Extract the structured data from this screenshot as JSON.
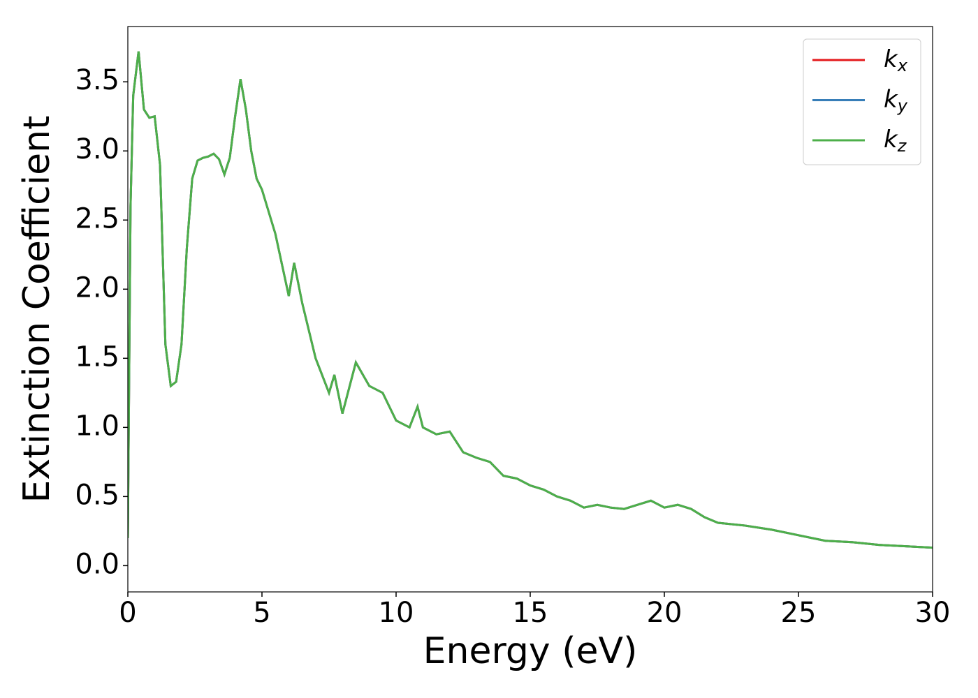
{
  "chart_data": {
    "type": "line",
    "xlabel": "Energy (eV)",
    "ylabel": "Extinction Coefficient",
    "x": [
      0,
      0.1,
      0.2,
      0.4,
      0.6,
      0.8,
      1.0,
      1.2,
      1.4,
      1.6,
      1.8,
      2.0,
      2.2,
      2.4,
      2.6,
      2.8,
      3.0,
      3.2,
      3.4,
      3.6,
      3.8,
      4.0,
      4.2,
      4.4,
      4.6,
      4.8,
      5.0,
      5.5,
      6.0,
      6.2,
      6.5,
      7.0,
      7.5,
      7.7,
      8.0,
      8.5,
      9.0,
      9.5,
      10.0,
      10.5,
      10.8,
      11.0,
      11.5,
      12.0,
      12.5,
      13.0,
      13.5,
      14.0,
      14.5,
      15.0,
      15.5,
      16.0,
      16.5,
      17.0,
      17.5,
      18.0,
      18.5,
      19.0,
      19.5,
      20.0,
      20.5,
      21.0,
      21.5,
      22.0,
      23,
      24,
      25,
      26,
      27,
      28,
      29,
      30
    ],
    "series": [
      {
        "name": "kx",
        "color": "#e41a1c",
        "values": [
          0.2,
          2.6,
          3.4,
          3.72,
          3.3,
          3.24,
          3.25,
          2.9,
          1.6,
          1.3,
          1.33,
          1.6,
          2.3,
          2.8,
          2.93,
          2.95,
          2.96,
          2.98,
          2.94,
          2.83,
          2.95,
          3.25,
          3.52,
          3.3,
          3.0,
          2.8,
          2.72,
          2.4,
          1.95,
          2.19,
          1.9,
          1.5,
          1.25,
          1.38,
          1.1,
          1.47,
          1.3,
          1.25,
          1.05,
          1.0,
          1.15,
          1.0,
          0.95,
          0.97,
          0.82,
          0.78,
          0.75,
          0.65,
          0.63,
          0.58,
          0.55,
          0.5,
          0.47,
          0.42,
          0.44,
          0.42,
          0.41,
          0.44,
          0.47,
          0.42,
          0.44,
          0.41,
          0.35,
          0.31,
          0.29,
          0.26,
          0.22,
          0.18,
          0.17,
          0.15,
          0.14,
          0.13
        ]
      },
      {
        "name": "ky",
        "color": "#377eb8",
        "values": [
          0.2,
          2.6,
          3.4,
          3.72,
          3.3,
          3.24,
          3.25,
          2.9,
          1.6,
          1.3,
          1.33,
          1.6,
          2.3,
          2.8,
          2.93,
          2.95,
          2.96,
          2.98,
          2.94,
          2.83,
          2.95,
          3.25,
          3.52,
          3.3,
          3.0,
          2.8,
          2.72,
          2.4,
          1.95,
          2.19,
          1.9,
          1.5,
          1.25,
          1.38,
          1.1,
          1.47,
          1.3,
          1.25,
          1.05,
          1.0,
          1.15,
          1.0,
          0.95,
          0.97,
          0.82,
          0.78,
          0.75,
          0.65,
          0.63,
          0.58,
          0.55,
          0.5,
          0.47,
          0.42,
          0.44,
          0.42,
          0.41,
          0.44,
          0.47,
          0.42,
          0.44,
          0.41,
          0.35,
          0.31,
          0.29,
          0.26,
          0.22,
          0.18,
          0.17,
          0.15,
          0.14,
          0.13
        ]
      },
      {
        "name": "kz",
        "color": "#4daf4a",
        "values": [
          0.2,
          2.6,
          3.4,
          3.72,
          3.3,
          3.24,
          3.25,
          2.9,
          1.6,
          1.3,
          1.33,
          1.6,
          2.3,
          2.8,
          2.93,
          2.95,
          2.96,
          2.98,
          2.94,
          2.83,
          2.95,
          3.25,
          3.52,
          3.3,
          3.0,
          2.8,
          2.72,
          2.4,
          1.95,
          2.19,
          1.9,
          1.5,
          1.25,
          1.38,
          1.1,
          1.47,
          1.3,
          1.25,
          1.05,
          1.0,
          1.15,
          1.0,
          0.95,
          0.97,
          0.82,
          0.78,
          0.75,
          0.65,
          0.63,
          0.58,
          0.55,
          0.5,
          0.47,
          0.42,
          0.44,
          0.42,
          0.41,
          0.44,
          0.47,
          0.42,
          0.44,
          0.41,
          0.35,
          0.31,
          0.29,
          0.26,
          0.22,
          0.18,
          0.17,
          0.15,
          0.14,
          0.13
        ]
      }
    ],
    "xlim": [
      0,
      30
    ],
    "xticks": [
      0,
      5,
      10,
      15,
      20,
      25,
      30
    ],
    "ylim": [
      -0.19,
      3.9
    ],
    "yticks": [
      {
        "value": 0,
        "label": "0.0"
      },
      0.5,
      {
        "value": 1,
        "label": "1.0"
      },
      1.5,
      {
        "value": 2,
        "label": "2.0"
      },
      2.5,
      {
        "value": 3,
        "label": "3.0"
      },
      3.5
    ],
    "legend": "upper right"
  }
}
